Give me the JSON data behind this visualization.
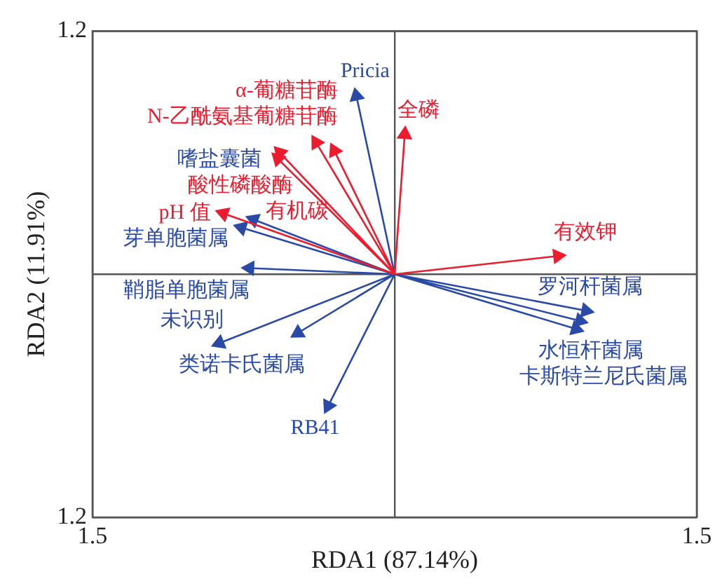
{
  "chart_data": {
    "type": "line",
    "xlabel": "RDA1 (87.14%)",
    "ylabel": "RDA2 (11.91%)",
    "xlim": [
      -1.5,
      1.5
    ],
    "xticks": [
      {
        "value": -1.5,
        "label": "1.5"
      },
      {
        "value": 0,
        "label": null
      },
      1.5
    ],
    "ylim": [
      -1.2,
      1.2
    ],
    "yticks": [
      {
        "value": -1.2,
        "label": "1.2"
      },
      {
        "value": 0,
        "label": null
      },
      1.2
    ],
    "grid": true,
    "marker": "triangle",
    "series": [
      {
        "color": "#ec1c2e",
        "x": [
          0,
          -0.57,
          null,
          0,
          -0.39,
          null,
          0,
          -0.3,
          null,
          0,
          0.05,
          null,
          0,
          -0.58,
          null,
          0,
          -0.85,
          null,
          0,
          0.81
        ],
        "values": [
          0,
          0.6,
          null,
          0,
          0.65,
          null,
          0,
          0.61,
          null,
          0,
          0.69,
          null,
          0,
          0.57,
          null,
          0,
          0.3,
          null,
          0,
          0.09
        ]
      },
      {
        "color": "#2a4aa8",
        "x": [
          0,
          -0.19,
          null,
          0,
          -0.76,
          null,
          0,
          -0.7,
          null,
          0,
          -0.72,
          null,
          0,
          -0.87,
          null,
          0,
          -0.48,
          null,
          0,
          -0.33,
          null,
          0,
          0.95,
          null,
          0,
          0.92,
          null,
          0,
          0.9
        ],
        "values": [
          0,
          0.88,
          null,
          0,
          0.23,
          null,
          0,
          0.27,
          null,
          0,
          0.03,
          null,
          0,
          -0.34,
          null,
          0,
          -0.29,
          null,
          0,
          -0.65,
          null,
          0,
          -0.18,
          null,
          0,
          -0.23,
          null,
          0,
          -0.27
        ]
      }
    ],
    "annotations": [
      {
        "text": "酸性磷酸酶",
        "x": -0.57,
        "y": 0.6
      },
      {
        "text": "α-葡糖苷酶",
        "x": -0.39,
        "y": 0.65
      },
      {
        "text": "N-乙酰氨基葡糖苷酶",
        "x": -0.3,
        "y": 0.61
      },
      {
        "text": "全磷",
        "x": 0.05,
        "y": 0.69
      },
      {
        "text": "有机碳",
        "x": -0.58,
        "y": 0.57
      },
      {
        "text": "pH 值",
        "x": -0.85,
        "y": 0.3
      },
      {
        "text": "有效钾",
        "x": 0.81,
        "y": 0.09
      },
      {
        "text": "Pricia",
        "x": -0.19,
        "y": 0.88
      },
      {
        "text": "芽单胞菌属",
        "x": -0.76,
        "y": 0.23
      },
      {
        "text": "嗜盐囊菌",
        "x": -0.7,
        "y": 0.27
      },
      {
        "text": "鞘脂单胞菌属",
        "x": -0.72,
        "y": 0.03
      },
      {
        "text": "未识别",
        "x": -0.87,
        "y": -0.34
      },
      {
        "text": "类诺卡氏菌属",
        "x": -0.48,
        "y": -0.29
      },
      {
        "text": "RB41",
        "x": -0.33,
        "y": -0.65
      },
      {
        "text": "罗河杆菌属",
        "x": 0.95,
        "y": -0.18
      },
      {
        "text": "水恒杆菌属",
        "x": 0.92,
        "y": -0.23
      },
      {
        "text": "卡斯特兰尼氏菌属",
        "x": 0.9,
        "y": -0.27
      }
    ]
  }
}
